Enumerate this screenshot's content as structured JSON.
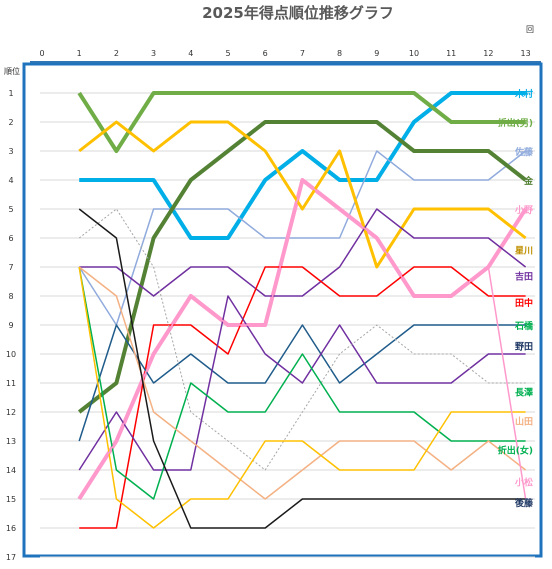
{
  "chart_data": {
    "type": "line",
    "title": "2025年得点順位推移グラフ",
    "xlabel": "回",
    "ylabel": "順位",
    "x": [
      0,
      1,
      2,
      3,
      4,
      5,
      6,
      7,
      8,
      9,
      10,
      11,
      12,
      13
    ],
    "xlim": [
      0,
      13
    ],
    "ylim": [
      1,
      17
    ],
    "y_inverted": true,
    "grid": true,
    "series": [
      {
        "name": "木村",
        "color": "#00aee8",
        "width": 4,
        "values": [
          null,
          4,
          4,
          4,
          6,
          6,
          4,
          3,
          4,
          4,
          2,
          1,
          1,
          1
        ]
      },
      {
        "name": "折出(男)",
        "color": "#70ad47",
        "width": 4,
        "values": [
          null,
          1,
          3,
          1,
          1,
          1,
          1,
          1,
          1,
          1,
          1,
          2,
          2,
          2
        ]
      },
      {
        "name": "佐藤",
        "color": "#8faadc",
        "width": 1.5,
        "values": [
          null,
          7,
          9,
          5,
          5,
          5,
          6,
          6,
          6,
          3,
          4,
          4,
          4,
          3
        ]
      },
      {
        "name": "金",
        "color": "#548235",
        "width": 4,
        "values": [
          null,
          12,
          11,
          6,
          4,
          3,
          2,
          2,
          2,
          2,
          3,
          3,
          3,
          4
        ]
      },
      {
        "name": "小野",
        "color": "#ff99cc",
        "width": 4,
        "values": [
          null,
          15,
          13,
          10,
          8,
          9,
          9,
          4,
          5,
          6,
          8,
          8,
          7,
          5
        ]
      },
      {
        "name": "星川",
        "color": "#ffc000",
        "width": 3,
        "values": [
          null,
          3,
          2,
          3,
          2,
          2,
          3,
          5,
          3,
          7,
          5,
          5,
          5,
          6
        ]
      },
      {
        "name": "吉田",
        "color": "#7030a0",
        "width": 1.5,
        "values": [
          null,
          7,
          7,
          8,
          7,
          7,
          8,
          8,
          7,
          5,
          6,
          6,
          6,
          7
        ]
      },
      {
        "name": "田中",
        "color": "#ff0000",
        "width": 1.5,
        "values": [
          null,
          16,
          16,
          9,
          9,
          10,
          7,
          7,
          8,
          8,
          7,
          7,
          8,
          8
        ]
      },
      {
        "name": "石橋",
        "color": "#1f5c8b",
        "width": 1.5,
        "values": [
          null,
          13,
          9,
          11,
          10,
          11,
          11,
          9,
          11,
          10,
          9,
          9,
          9,
          9
        ]
      },
      {
        "name": "野田",
        "color": "#7030a0",
        "width": 1.5,
        "values": [
          null,
          14,
          12,
          14,
          14,
          8,
          10,
          11,
          9,
          11,
          11,
          11,
          10,
          10
        ]
      },
      {
        "name": "",
        "color": "#a6a6a6",
        "width": 1,
        "dash": "2,2",
        "values": [
          null,
          6,
          5,
          7,
          12,
          13,
          14,
          12,
          10,
          9,
          10,
          10,
          11,
          11
        ]
      },
      {
        "name": "長澤",
        "color": "#00b050",
        "width": 1.5,
        "values": [
          null,
          7,
          14,
          15,
          11,
          12,
          12,
          10,
          12,
          12,
          12,
          13,
          13,
          13
        ]
      },
      {
        "name": "山田",
        "color": "#f4b183",
        "width": 1.5,
        "values": [
          null,
          7,
          8,
          12,
          13,
          14,
          15,
          14,
          13,
          13,
          13,
          14,
          13,
          14
        ]
      },
      {
        "name": "折出(女)",
        "color": "#ffc000",
        "width": 1.5,
        "values": [
          null,
          7,
          15,
          16,
          15,
          15,
          13,
          13,
          14,
          14,
          14,
          12,
          12,
          12
        ]
      },
      {
        "name": "小松",
        "color": "#ff99cc",
        "width": 1.5,
        "values": [
          null,
          15,
          13,
          10,
          8,
          9,
          9,
          4,
          5,
          6,
          8,
          8,
          7,
          15
        ]
      },
      {
        "name": "後藤",
        "color": "#1a1a1a",
        "width": 1.5,
        "values": [
          null,
          5,
          6,
          13,
          16,
          16,
          16,
          15,
          15,
          15,
          15,
          15,
          15,
          15
        ]
      }
    ],
    "labels": [
      {
        "text": "木村",
        "color": "#00aee8",
        "y": 1
      },
      {
        "text": "折出(男)",
        "color": "#70ad47",
        "y": 2
      },
      {
        "text": "佐藤",
        "color": "#8faadc",
        "y": 3
      },
      {
        "text": "金",
        "color": "#548235",
        "y": 4
      },
      {
        "text": "小野",
        "color": "#ff99cc",
        "y": 5
      },
      {
        "text": "星川",
        "color": "#bf9000",
        "y": 6.4
      },
      {
        "text": "吉田",
        "color": "#7030a0",
        "y": 7.3
      },
      {
        "text": "田中",
        "color": "#ff0000",
        "y": 8.2
      },
      {
        "text": "石橋",
        "color": "#00b050",
        "y": 9
      },
      {
        "text": "野田",
        "color": "#1f3864",
        "y": 9.7
      },
      {
        "text": "長澤",
        "color": "#00b050",
        "y": 11.3
      },
      {
        "text": "山田",
        "color": "#f4b183",
        "y": 12.3
      },
      {
        "text": "折出(女)",
        "color": "#00b050",
        "y": 13.3
      },
      {
        "text": "小松",
        "color": "#ff99cc",
        "y": 14.4
      },
      {
        "text": "後藤",
        "color": "#1f3864",
        "y": 15.1
      }
    ]
  }
}
